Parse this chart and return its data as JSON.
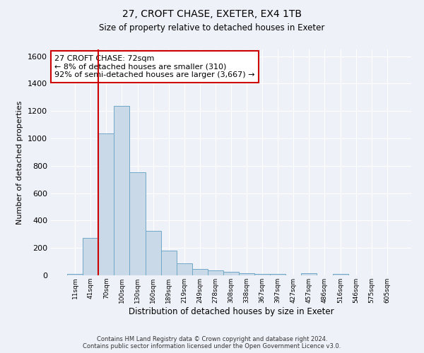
{
  "title1": "27, CROFT CHASE, EXETER, EX4 1TB",
  "title2": "Size of property relative to detached houses in Exeter",
  "xlabel": "Distribution of detached houses by size in Exeter",
  "ylabel": "Number of detached properties",
  "categories": [
    "11sqm",
    "41sqm",
    "70sqm",
    "100sqm",
    "130sqm",
    "160sqm",
    "189sqm",
    "219sqm",
    "249sqm",
    "278sqm",
    "308sqm",
    "338sqm",
    "367sqm",
    "397sqm",
    "427sqm",
    "457sqm",
    "486sqm",
    "516sqm",
    "546sqm",
    "575sqm",
    "605sqm"
  ],
  "values": [
    10,
    275,
    1035,
    1235,
    755,
    325,
    180,
    90,
    48,
    35,
    25,
    17,
    10,
    10,
    0,
    15,
    0,
    8,
    0,
    0,
    0
  ],
  "bar_color": "#c9d9e8",
  "bar_edge_color": "#6fa8c8",
  "vline_color": "#cc0000",
  "vline_pos": 1.5,
  "annotation_text": "27 CROFT CHASE: 72sqm\n← 8% of detached houses are smaller (310)\n92% of semi-detached houses are larger (3,667) →",
  "annotation_box_color": "#ffffff",
  "annotation_box_edge": "#cc0000",
  "ylim": [
    0,
    1650
  ],
  "yticks": [
    0,
    200,
    400,
    600,
    800,
    1000,
    1200,
    1400,
    1600
  ],
  "footnote": "Contains HM Land Registry data © Crown copyright and database right 2024.\nContains public sector information licensed under the Open Government Licence v3.0.",
  "bg_color": "#eef2f8",
  "plot_bg_color": "#eef2f8",
  "grid_color": "#ffffff"
}
